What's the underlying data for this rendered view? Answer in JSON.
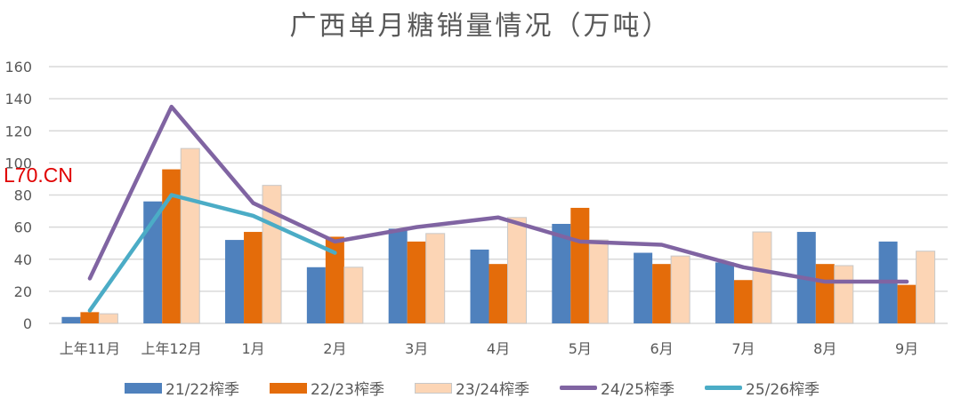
{
  "title": "广西单月糖销量情况（万吨）",
  "watermark": "L70.CN",
  "colors": {
    "s2122": "#4f81bd",
    "s2223": "#e46c0a",
    "s2324": "#fcd5b5",
    "s2324_border": "#c8c8c8",
    "s2425": "#8064a2",
    "s2526": "#4bacc6",
    "grid": "#d9d9d9",
    "axis_text": "#595959"
  },
  "legend": [
    {
      "label": "21/22榨季",
      "type": "bar",
      "color": "#4f81bd"
    },
    {
      "label": "22/23榨季",
      "type": "bar",
      "color": "#e46c0a"
    },
    {
      "label": "23/24榨季",
      "type": "bar",
      "color": "#fcd5b5"
    },
    {
      "label": "24/25榨季",
      "type": "line",
      "color": "#8064a2"
    },
    {
      "label": "25/26榨季",
      "type": "line",
      "color": "#4bacc6"
    }
  ],
  "chart_data": {
    "type": "bar",
    "title": "广西单月糖销量情况（万吨）",
    "xlabel": "",
    "ylabel": "",
    "ylim": [
      0,
      160
    ],
    "yticks": [
      0,
      20,
      40,
      60,
      80,
      100,
      120,
      140,
      160
    ],
    "grid": true,
    "legend_position": "bottom",
    "categories": [
      "上年11月",
      "上年12月",
      "1月",
      "2月",
      "3月",
      "4月",
      "5月",
      "6月",
      "7月",
      "8月",
      "9月"
    ],
    "series": [
      {
        "name": "21/22榨季",
        "type": "bar",
        "values": [
          4,
          76,
          52,
          35,
          59,
          46,
          62,
          44,
          38,
          57,
          51
        ]
      },
      {
        "name": "22/23榨季",
        "type": "bar",
        "values": [
          7,
          96,
          57,
          54,
          51,
          37,
          72,
          37,
          27,
          37,
          24
        ]
      },
      {
        "name": "23/24榨季",
        "type": "bar",
        "values": [
          6,
          109,
          86,
          35,
          56,
          66,
          52,
          42,
          57,
          36,
          45
        ]
      },
      {
        "name": "24/25榨季",
        "type": "line",
        "values": [
          28,
          135,
          75,
          51,
          60,
          66,
          51,
          49,
          35,
          26,
          26
        ]
      },
      {
        "name": "25/26榨季",
        "type": "line",
        "values": [
          8,
          80,
          67,
          44,
          null,
          null,
          null,
          null,
          null,
          null,
          null
        ]
      }
    ]
  }
}
